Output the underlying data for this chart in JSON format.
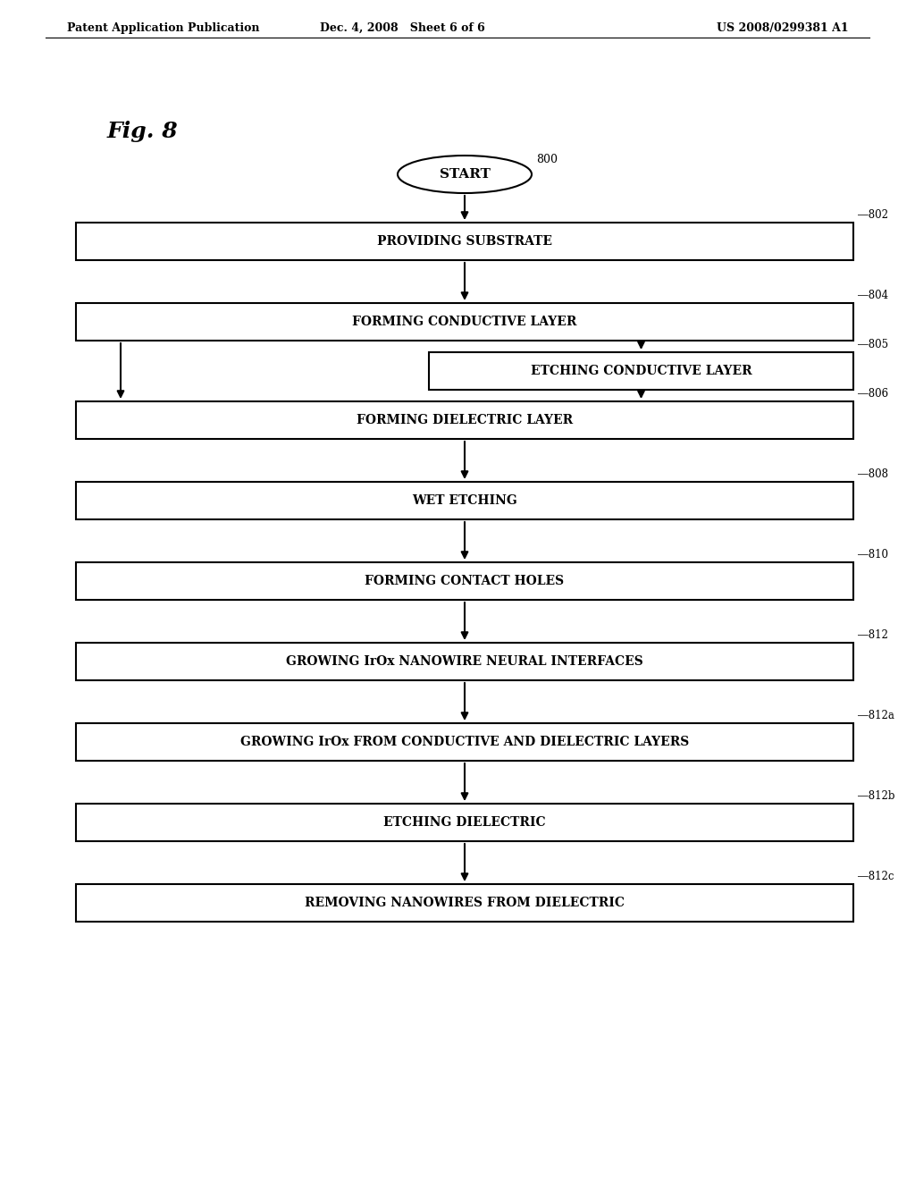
{
  "bg_color": "#ffffff",
  "header_left": "Patent Application Publication",
  "header_center": "Dec. 4, 2008   Sheet 6 of 6",
  "header_right": "US 2008/0299381 A1",
  "fig_label": "Fig. 8",
  "start_label": "START",
  "start_ref": "800",
  "boxes": [
    {
      "label": "PROVIDING SUBSTRATE",
      "ref": "802"
    },
    {
      "label": "FORMING CONDUCTIVE LAYER",
      "ref": "804"
    },
    {
      "label": "FORMING DIELECTRIC LAYER",
      "ref": "806"
    },
    {
      "label": "WET ETCHING",
      "ref": "808"
    },
    {
      "label": "FORMING CONTACT HOLES",
      "ref": "810"
    },
    {
      "label": "GROWING IrOx NANOWIRE NEURAL INTERFACES",
      "ref": "812"
    },
    {
      "label": "GROWING IrOx FROM CONDUCTIVE AND DIELECTRIC LAYERS",
      "ref": "812a"
    },
    {
      "label": "ETCHING DIELECTRIC",
      "ref": "812b"
    },
    {
      "label": "REMOVING NANOWIRES FROM DIELECTRIC",
      "ref": "812c"
    }
  ],
  "side_box": {
    "label": "ETCHING CONDUCTIVE LAYER",
    "ref": "805"
  },
  "font_family": "DejaVu Serif",
  "box_edge_color": "#000000",
  "box_face_color": "#ffffff",
  "text_color": "#000000",
  "arrow_color": "#000000"
}
